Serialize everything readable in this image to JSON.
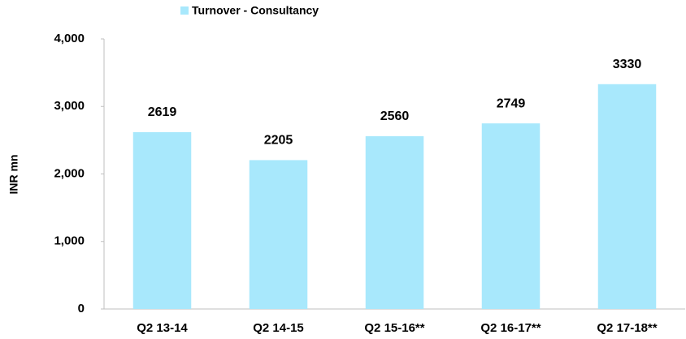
{
  "chart_data": {
    "type": "bar",
    "y_label": "INR mn",
    "categories": [
      "Q2 13-14",
      "Q2 14-15",
      "Q2 15-16**",
      "Q2 16-17**",
      "Q2 17-18**"
    ],
    "series": [
      {
        "name": "Turnover - Consultancy",
        "color": "#a8e8fc",
        "values": [
          2619,
          2205,
          2560,
          2749,
          3330
        ]
      }
    ],
    "ylim": [
      0,
      4000
    ],
    "yticks": [
      0,
      {
        "value": 1000,
        "label": "1,000"
      },
      {
        "value": 2000,
        "label": "2,000"
      },
      {
        "value": 3000,
        "label": "3,000"
      },
      {
        "value": 4000,
        "label": "4,000"
      }
    ],
    "grid": false,
    "legend": "top"
  }
}
